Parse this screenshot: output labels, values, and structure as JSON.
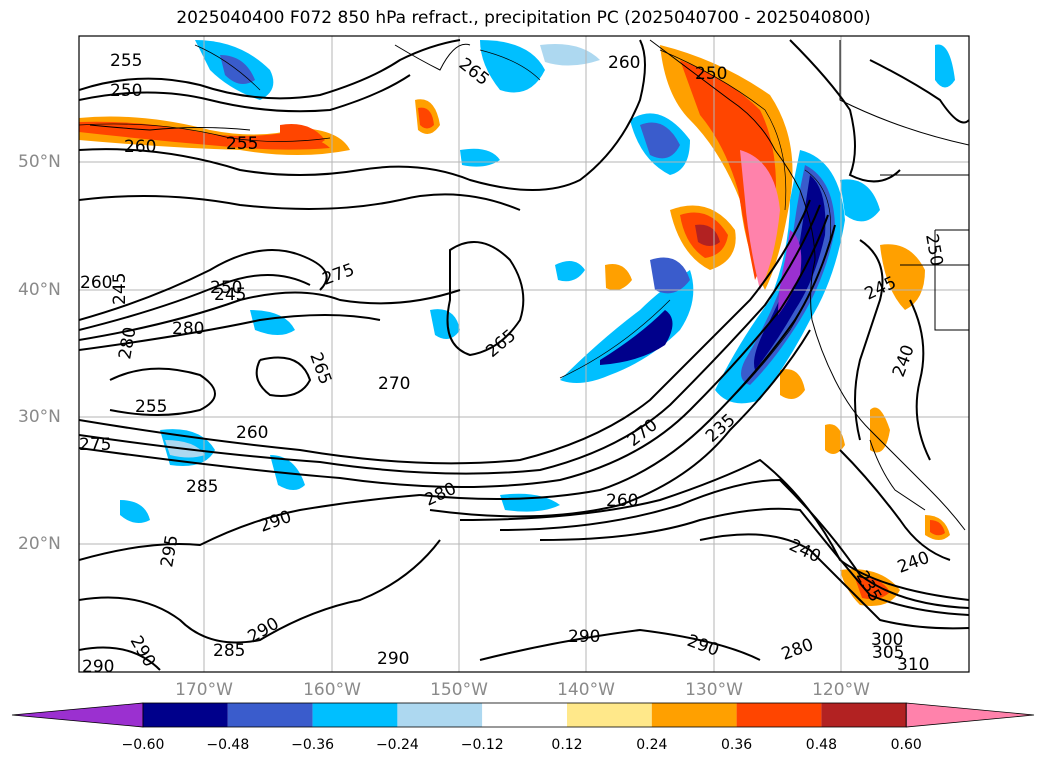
{
  "title": "2025040400 F072 850 hPa refract., precipitation PC (2025040700 - 2025040800)",
  "lat_labels": [
    "50°N",
    "40°N",
    "30°N",
    "20°N"
  ],
  "lon_labels": [
    "170°W",
    "160°W",
    "150°W",
    "140°W",
    "130°W",
    "120°W"
  ],
  "contour_labels": [
    "255",
    "250",
    "260",
    "255",
    "265",
    "260",
    "250",
    "260",
    "250",
    "245",
    "280",
    "280",
    "275",
    "265",
    "270",
    "255",
    "260",
    "285",
    "290",
    "295",
    "280",
    "265",
    "270",
    "235",
    "260",
    "240",
    "240",
    "245",
    "240",
    "250",
    "290",
    "290",
    "290",
    "285",
    "290",
    "280",
    "300",
    "305",
    "310",
    "235",
    "275",
    "245",
    "290",
    "290"
  ],
  "colorbar": {
    "ticks": [
      "−0.60",
      "−0.48",
      "−0.36",
      "−0.24",
      "−0.12",
      "0.12",
      "0.24",
      "0.36",
      "0.48",
      "0.60"
    ],
    "colors": [
      "#9b30d0",
      "#00008b",
      "#3a5ccc",
      "#00bfff",
      "#add8f0",
      "#ffffff",
      "#ffe88a",
      "#ffa000",
      "#ff4500",
      "#b22222",
      "#ff82ab"
    ]
  }
}
